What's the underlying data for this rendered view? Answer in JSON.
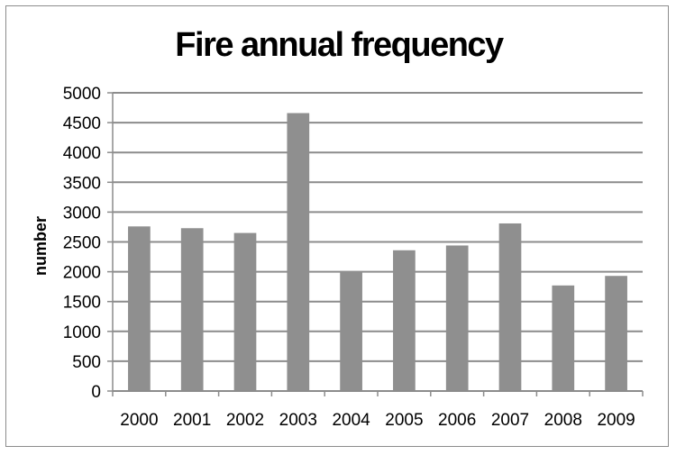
{
  "chart_data": {
    "type": "bar",
    "title": "Fire annual frequency",
    "xlabel": "",
    "ylabel": "number",
    "categories": [
      "2000",
      "2001",
      "2002",
      "2003",
      "2004",
      "2005",
      "2006",
      "2007",
      "2008",
      "2009"
    ],
    "values": [
      2760,
      2730,
      2650,
      4660,
      2010,
      2360,
      2440,
      2810,
      1770,
      1930
    ],
    "ylim": [
      0,
      5000
    ],
    "yticks": [
      "0",
      "500",
      "1000",
      "1500",
      "2000",
      "2500",
      "3000",
      "3500",
      "4000",
      "4500",
      "5000"
    ],
    "grid": true,
    "legend": "none",
    "colors": {
      "bar": "#8f8f8f",
      "grid": "#8c8c8c",
      "axis": "#8c8c8c",
      "frame": "#8c8c8c"
    }
  }
}
